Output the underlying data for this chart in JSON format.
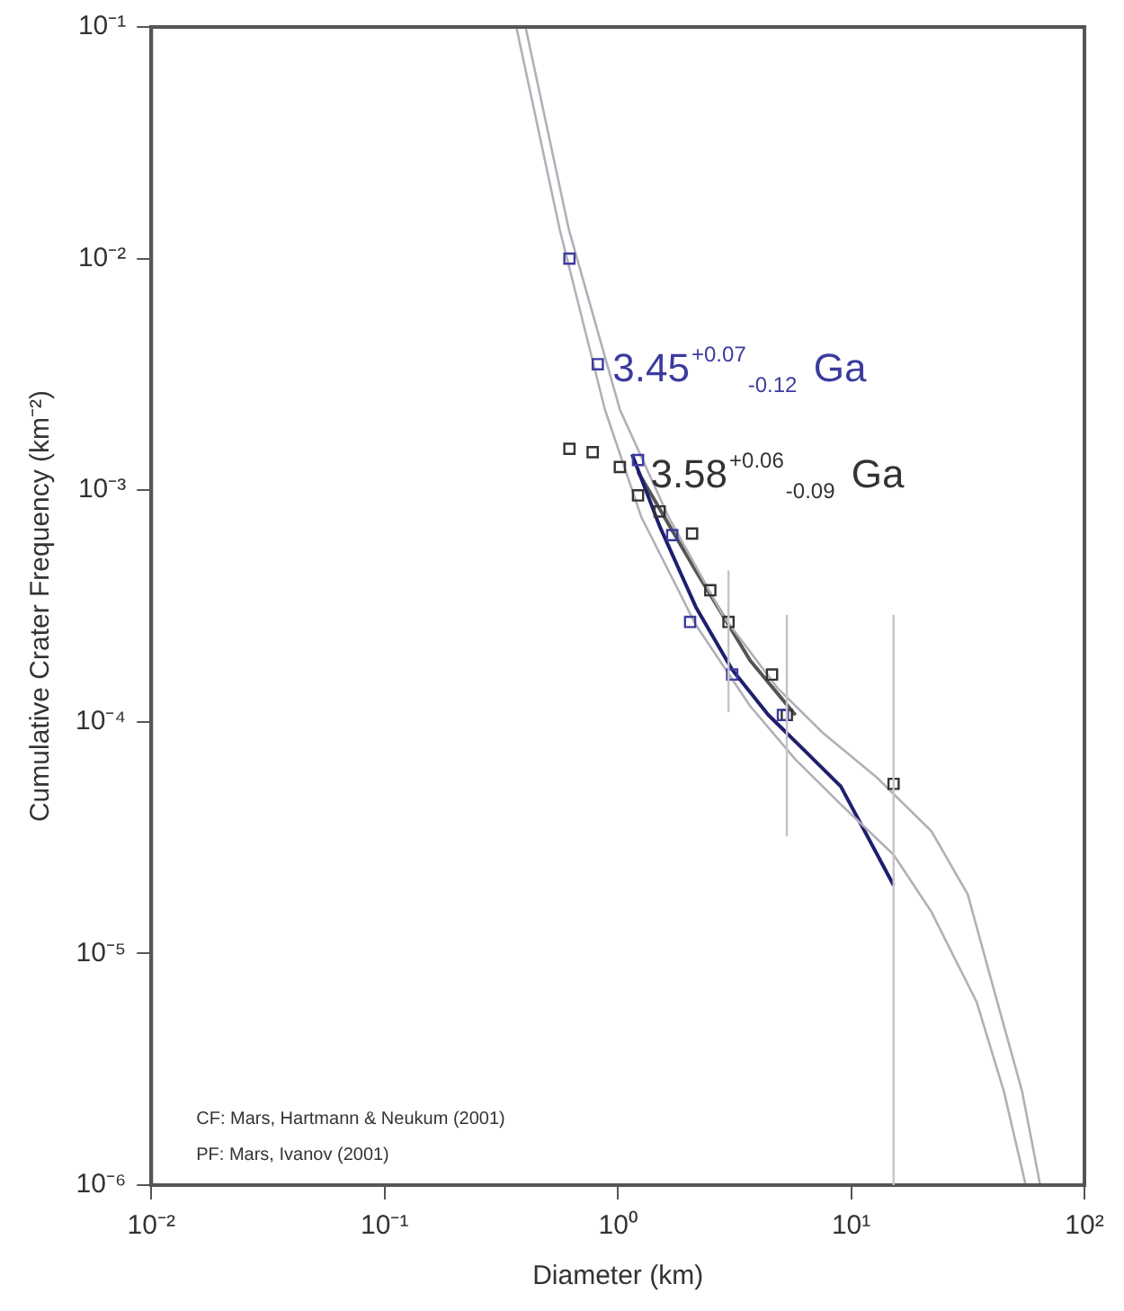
{
  "chart_data": {
    "type": "scatter",
    "xlabel": "Diameter (km)",
    "ylabel": "Cumulative Crater Frequency (km⁻²)",
    "log": "xy",
    "grid": false,
    "legend": false,
    "xlim": [
      0.01,
      100
    ],
    "xticks": [
      {
        "value": 0.01,
        "label": "10⁻²"
      },
      {
        "value": 0.1,
        "label": "10⁻¹"
      },
      {
        "value": 1,
        "label": "10⁰"
      },
      {
        "value": 10,
        "label": "10¹"
      },
      {
        "value": 100,
        "label": "10²"
      }
    ],
    "ylim": [
      1e-06,
      0.1
    ],
    "yticks": [
      {
        "value": 1e-06,
        "label": "10⁻⁶"
      },
      {
        "value": 1e-05,
        "label": "10⁻⁵"
      },
      {
        "value": 0.0001,
        "label": "10⁻⁴"
      },
      {
        "value": 0.001,
        "label": "10⁻³"
      },
      {
        "value": 0.01,
        "label": "10⁻²"
      },
      {
        "value": 0.1,
        "label": "10⁻¹"
      }
    ],
    "series": [
      {
        "type": "scatter",
        "marker": "square",
        "color": "#3b3b9e",
        "x": [
          0.62,
          0.82,
          1.22,
          1.71,
          2.04,
          3.09,
          5.1
        ],
        "values": [
          0.01,
          0.0035,
          0.00135,
          0.00064,
          0.00027,
          0.00016,
          0.000107
        ]
      },
      {
        "type": "scatter",
        "marker": "square",
        "color": "#333333",
        "x": [
          0.62,
          0.78,
          1.02,
          1.22,
          1.51,
          2.08,
          2.49,
          2.98,
          4.58,
          5.3,
          15.2
        ],
        "values": [
          0.00151,
          0.00146,
          0.00126,
          0.00095,
          0.00081,
          0.00065,
          0.00037,
          0.00027,
          0.00016,
          0.000107,
          5.4e-05
        ],
        "errors": [
          null,
          null,
          null,
          null,
          null,
          null,
          null,
          [
            0.00011,
            0.00045
          ],
          null,
          [
            3.2e-05,
            0.00029
          ],
          [
            1e-06,
            0.00029
          ]
        ]
      },
      {
        "type": "line",
        "marker": "none",
        "color": "#b0b0b8",
        "x": [
          0.367,
          0.564,
          0.88,
          1.26,
          2.16,
          3.69,
          5.77,
          9.03,
          15.2,
          22.1,
          34.5,
          45.2,
          56.0
        ],
        "values": [
          0.1,
          0.0133,
          0.00223,
          0.000766,
          0.000262,
          0.000117,
          6.88e-05,
          4.4e-05,
          2.67e-05,
          1.51e-05,
          6.18e-06,
          2.53e-06,
          1e-06
        ]
      },
      {
        "type": "line",
        "marker": "none",
        "color": "#b0b0b8",
        "x": [
          0.402,
          0.617,
          1.02,
          1.65,
          2.83,
          4.83,
          7.56,
          12.9,
          22.1,
          31.6,
          41.3,
          54.1,
          64.6
        ],
        "values": [
          0.1,
          0.0133,
          0.00223,
          0.000766,
          0.000286,
          0.00014,
          8.97e-05,
          5.75e-05,
          3.37e-05,
          1.8e-05,
          6.75e-06,
          2.53e-06,
          1e-06
        ]
      },
      {
        "type": "line",
        "marker": "none",
        "color": "#1f1f6e",
        "x": [
          1.15,
          1.51,
          2.16,
          3.09,
          4.42,
          6.31,
          9.03,
          15.2
        ],
        "values": [
          0.00143,
          0.0007,
          0.000313,
          0.000168,
          0.000107,
          7.52e-05,
          5.26e-05,
          1.97e-05
        ]
      },
      {
        "type": "line",
        "marker": "none",
        "color": "#555555",
        "x": [
          1.22,
          2.16,
          3.69,
          5.77
        ],
        "values": [
          0.0012,
          0.000448,
          0.000184,
          0.000107
        ]
      }
    ],
    "annotations": [
      {
        "text": "3.45$^{+0.07}$$_{-0.12}$ Ga",
        "x": 0.95,
        "y": 0.0035
      },
      {
        "text": "3.58$^{+0.06}$$_{-0.09}$ Ga",
        "x": 1.38,
        "y": 0.0012
      },
      "CF: Mars, Hartmann & Neukum (2001)",
      "PF: Mars, Ivanov (2001)"
    ]
  }
}
